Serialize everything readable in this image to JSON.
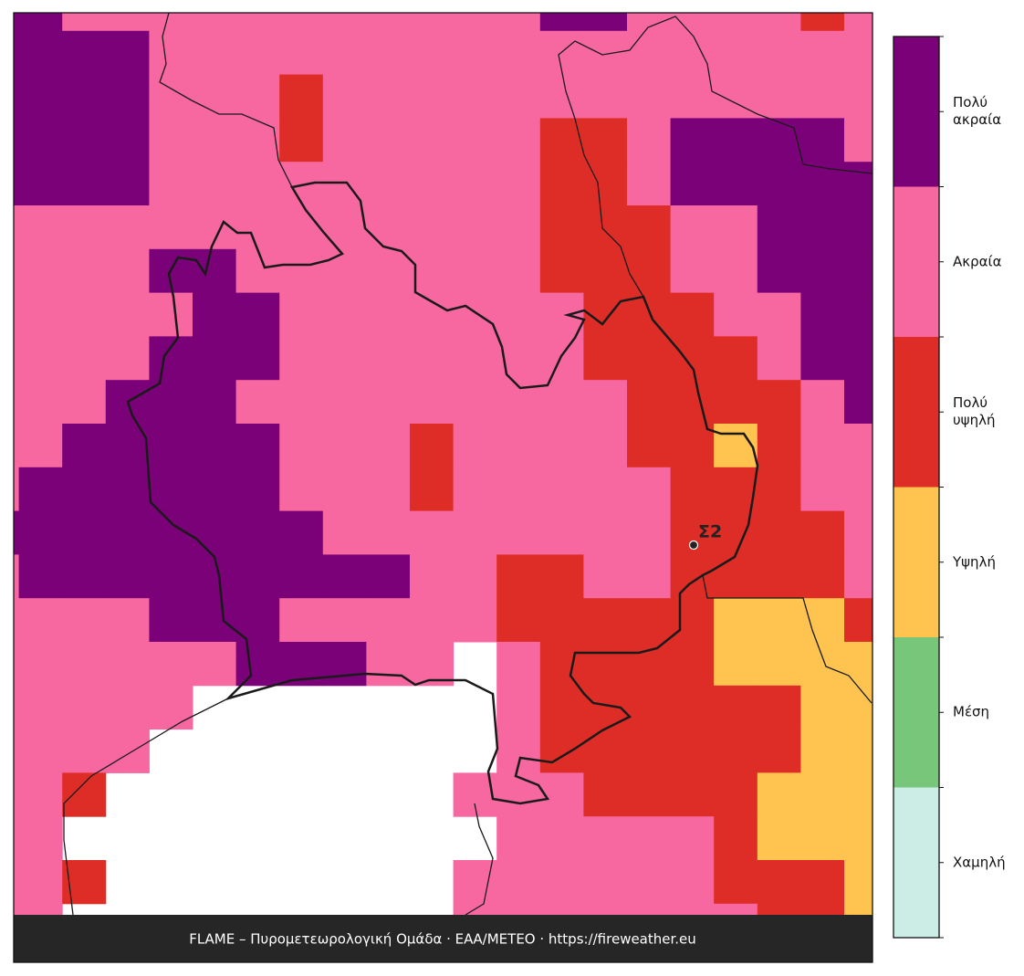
{
  "map": {
    "classes": [
      {
        "label": "Χαμηλή",
        "color": "#ccece6"
      },
      {
        "label": "Μέση",
        "color": "#78c679"
      },
      {
        "label": "Υψηλή",
        "color": "#fec44f"
      },
      {
        "label": "Πολύ\nυψηλή",
        "color": "#de2d26"
      },
      {
        "label": "Ακραία",
        "color": "#f768a1"
      },
      {
        "label": "Πολύ\nακραία",
        "color": "#7a0177"
      }
    ],
    "grid": [
      [
        6,
        6,
        5,
        5,
        5,
        5,
        5,
        5,
        5,
        5,
        5,
        5,
        5,
        6,
        6,
        5,
        5,
        5,
        5,
        4,
        5
      ],
      [
        6,
        6,
        6,
        6,
        5,
        5,
        5,
        5,
        5,
        5,
        5,
        5,
        5,
        5,
        5,
        5,
        5,
        5,
        5,
        5,
        5
      ],
      [
        6,
        6,
        6,
        6,
        5,
        5,
        5,
        4,
        5,
        5,
        5,
        5,
        5,
        5,
        5,
        5,
        5,
        5,
        5,
        5,
        5
      ],
      [
        6,
        6,
        6,
        6,
        5,
        5,
        5,
        4,
        5,
        5,
        5,
        5,
        5,
        4,
        4,
        5,
        6,
        6,
        6,
        6,
        5
      ],
      [
        6,
        6,
        6,
        6,
        5,
        5,
        5,
        5,
        5,
        5,
        5,
        5,
        5,
        4,
        4,
        5,
        6,
        6,
        6,
        6,
        6
      ],
      [
        5,
        5,
        5,
        5,
        5,
        5,
        5,
        5,
        5,
        5,
        5,
        5,
        5,
        4,
        4,
        4,
        5,
        5,
        6,
        6,
        6
      ],
      [
        5,
        5,
        5,
        5,
        6,
        6,
        5,
        5,
        5,
        5,
        5,
        5,
        5,
        4,
        4,
        4,
        5,
        5,
        6,
        6,
        6
      ],
      [
        5,
        5,
        5,
        5,
        5,
        6,
        6,
        5,
        5,
        5,
        5,
        5,
        5,
        5,
        4,
        4,
        4,
        5,
        5,
        6,
        6
      ],
      [
        5,
        5,
        5,
        5,
        6,
        6,
        6,
        5,
        5,
        5,
        5,
        5,
        5,
        5,
        4,
        4,
        4,
        4,
        5,
        6,
        6
      ],
      [
        5,
        5,
        5,
        6,
        6,
        6,
        5,
        5,
        5,
        5,
        5,
        5,
        5,
        5,
        5,
        4,
        4,
        4,
        4,
        5,
        6
      ],
      [
        5,
        5,
        6,
        6,
        6,
        6,
        6,
        5,
        5,
        5,
        4,
        5,
        5,
        5,
        5,
        4,
        4,
        3,
        4,
        5,
        5
      ],
      [
        5,
        6,
        6,
        6,
        6,
        6,
        6,
        5,
        5,
        5,
        4,
        5,
        5,
        5,
        5,
        5,
        4,
        4,
        4,
        5,
        5
      ],
      [
        6,
        6,
        6,
        6,
        6,
        6,
        6,
        6,
        5,
        5,
        5,
        5,
        5,
        5,
        5,
        5,
        4,
        4,
        4,
        4,
        5
      ],
      [
        5,
        6,
        6,
        6,
        6,
        6,
        6,
        6,
        6,
        6,
        5,
        5,
        4,
        4,
        5,
        5,
        4,
        4,
        4,
        4,
        5
      ],
      [
        5,
        5,
        5,
        5,
        6,
        6,
        6,
        5,
        5,
        5,
        5,
        5,
        4,
        4,
        4,
        4,
        4,
        3,
        3,
        3,
        4
      ],
      [
        5,
        5,
        5,
        5,
        5,
        5,
        6,
        6,
        6,
        5,
        5,
        null,
        5,
        4,
        4,
        4,
        4,
        3,
        3,
        3,
        3
      ],
      [
        5,
        5,
        5,
        5,
        5,
        null,
        null,
        null,
        null,
        null,
        null,
        null,
        5,
        4,
        4,
        4,
        4,
        4,
        4,
        3,
        3
      ],
      [
        5,
        5,
        5,
        5,
        null,
        null,
        null,
        null,
        null,
        null,
        null,
        null,
        5,
        4,
        4,
        4,
        4,
        4,
        4,
        3,
        3
      ],
      [
        5,
        5,
        4,
        null,
        null,
        null,
        null,
        null,
        null,
        null,
        null,
        5,
        5,
        5,
        4,
        4,
        4,
        4,
        3,
        3,
        3
      ],
      [
        5,
        5,
        null,
        null,
        null,
        null,
        null,
        null,
        null,
        null,
        null,
        null,
        5,
        5,
        5,
        5,
        5,
        4,
        3,
        3,
        3
      ],
      [
        5,
        5,
        4,
        null,
        null,
        null,
        null,
        null,
        null,
        null,
        null,
        5,
        5,
        5,
        5,
        5,
        5,
        4,
        4,
        4,
        3
      ],
      [
        5,
        5,
        null,
        null,
        null,
        null,
        null,
        null,
        null,
        null,
        null,
        5,
        5,
        5,
        5,
        5,
        5,
        5,
        4,
        4,
        3
      ]
    ],
    "station": "Σ2",
    "footer": "FLAME – Πυρομετεωρολογική Ομάδα · ΕΑΑ/METEO · https://fireweather.eu"
  }
}
